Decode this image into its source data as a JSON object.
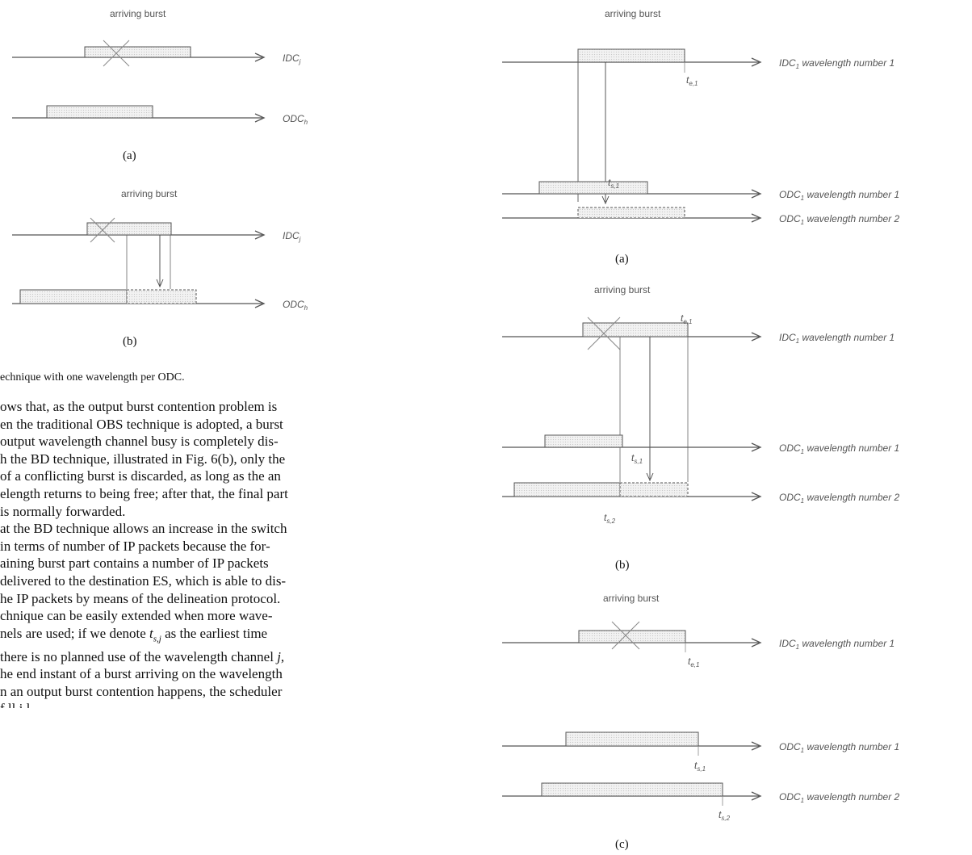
{
  "left_figure": {
    "burst_label": "arriving burst",
    "ch_in": "IDC",
    "ch_in_sub": "j",
    "ch_out": "ODC",
    "ch_out_sub": "h",
    "cap_a": "(a)",
    "cap_b": "(b)"
  },
  "right_figure": {
    "burst_label": "arriving burst",
    "in_label": "IDC",
    "in_sub": "1",
    "in_suffix": " wavelength number 1",
    "out1_label": "ODC",
    "out1_sub": "1",
    "out1_suffix": " wavelength number 1",
    "out2_label": "ODC",
    "out2_sub": "1",
    "out2_suffix": " wavelength number 2",
    "te1": "t",
    "te1_sub": "e,1",
    "ts1": "t",
    "ts1_sub": "s,1",
    "ts2": "t",
    "ts2_sub": "s,2",
    "cap_a": "(a)",
    "cap_b": "(b)",
    "cap_c": "(c)"
  },
  "caption_fragment": "echnique with one wavelength per ODC.",
  "text_lines": [
    "ows that, as the output burst contention problem is",
    "en the traditional OBS technique is adopted, a burst",
    "output wavelength channel busy is completely dis-",
    "h the BD technique, illustrated in Fig. 6(b), only the",
    "of a conflicting burst is discarded, as long as the an",
    "elength returns to being free; after that, the final part",
    " is normally forwarded.",
    "at the BD technique allows an increase in the switch",
    "in terms of number of IP packets because the for-",
    "aining burst part contains a number of IP packets",
    "delivered to the destination ES, which is able to dis-",
    "he IP packets by means of the delineation protocol.",
    "chnique can be easily extended when more wave-",
    "nels are used; if we denote",
    "there is no planned use of the wavelength channel",
    "he end instant of a burst arriving on the wavelength",
    "n an output burst contention happens, the scheduler",
    "                                    f ll   i         l"
  ],
  "inline_math": {
    "tsj": "t",
    "tsj_sub": "s,j",
    "after_tsj": " as the earliest time",
    "j": "j",
    "after_j": ","
  }
}
